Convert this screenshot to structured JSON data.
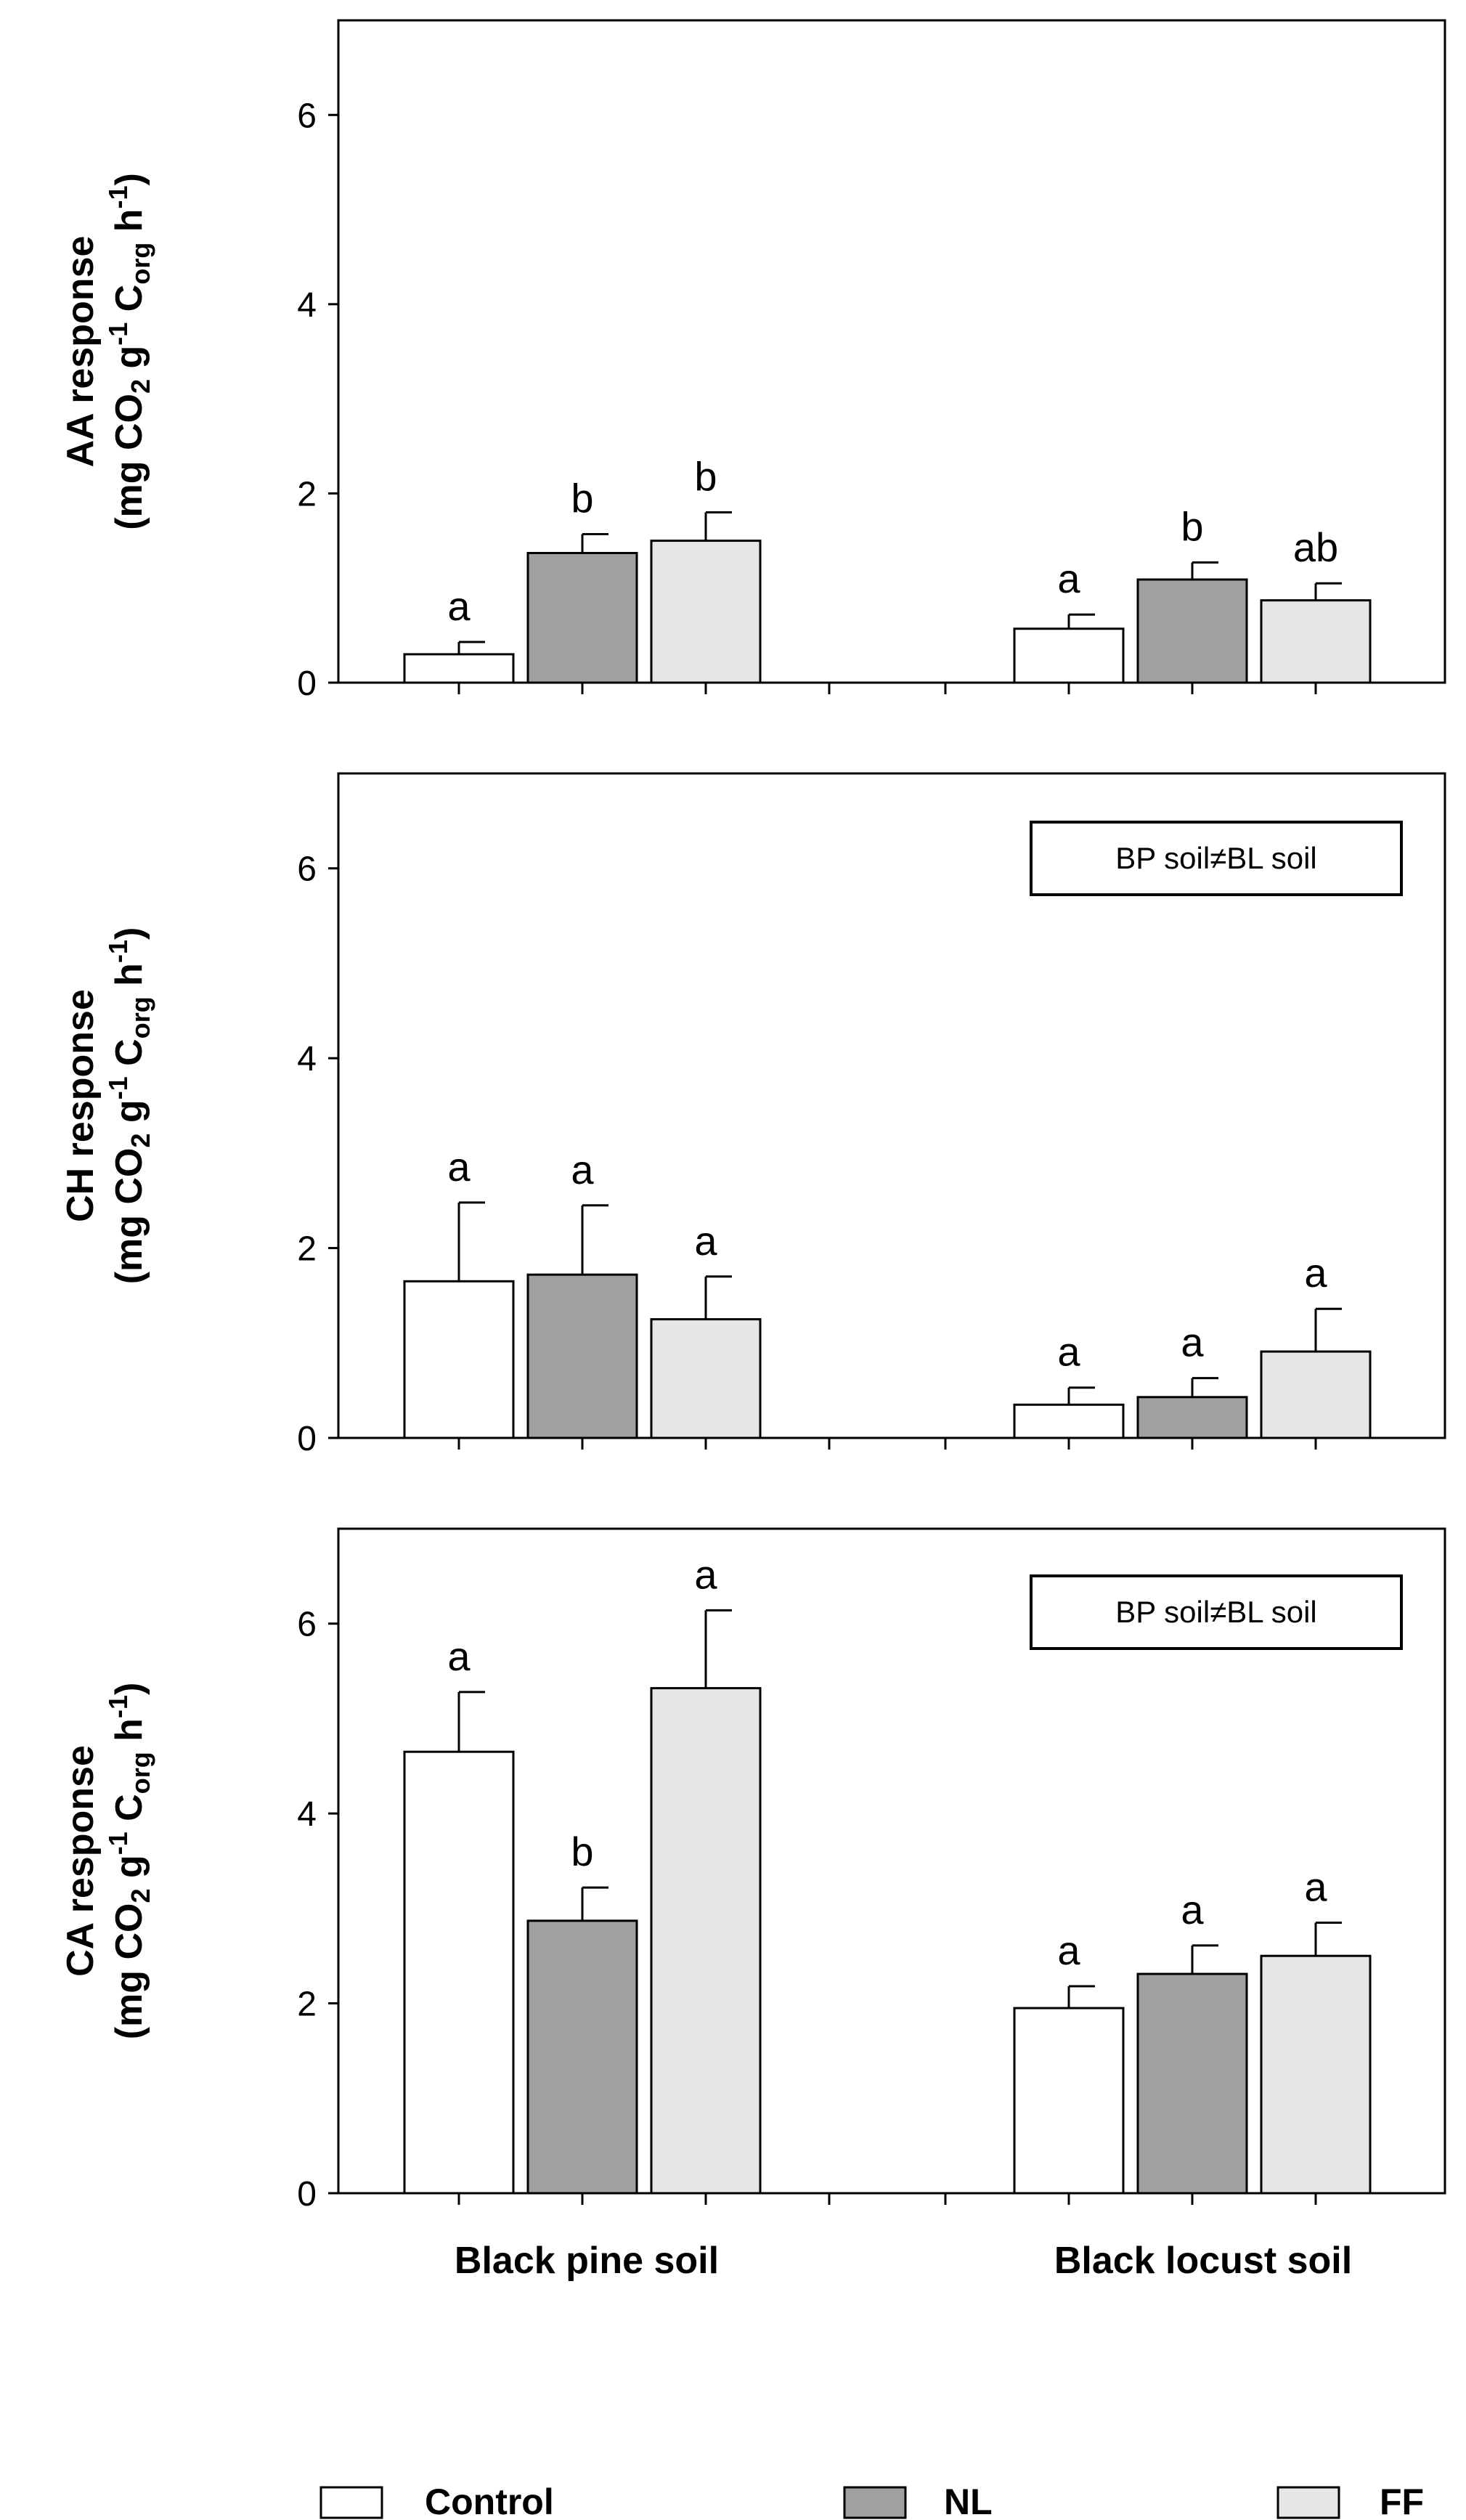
{
  "chart_data": {
    "type": "bar",
    "categories": [
      "Black pine soil",
      "Black locust soil"
    ],
    "legend": [
      "Control",
      "NL",
      "FF"
    ],
    "colors": {
      "Control": "#ffffff",
      "NL": "#a0a0a0",
      "FF": "#e6e6e6"
    },
    "ylim": [
      0,
      7
    ],
    "yticks": [
      "0",
      "2",
      "4",
      "6"
    ],
    "panels": [
      {
        "ylabel_line1": "AA response",
        "ylabel_parts": [
          "(mg CO",
          "2",
          " g",
          "-1",
          " C",
          "org",
          " h",
          "-1",
          ")"
        ],
        "note": "",
        "series": [
          {
            "name": "Control",
            "values": [
              0.3,
              0.57
            ],
            "errors": [
              0.13,
              0.15
            ],
            "letters": [
              "a",
              "a"
            ]
          },
          {
            "name": "NL",
            "values": [
              1.37,
              1.09
            ],
            "errors": [
              0.2,
              0.18
            ],
            "letters": [
              "b",
              "b"
            ]
          },
          {
            "name": "FF",
            "values": [
              1.5,
              0.87
            ],
            "errors": [
              0.3,
              0.18
            ],
            "letters": [
              "b",
              "ab"
            ]
          }
        ]
      },
      {
        "ylabel_line1": "CH response",
        "ylabel_parts": [
          "(mg CO",
          "2",
          " g",
          "-1",
          " C",
          "org",
          " h",
          "-1",
          ")"
        ],
        "note": "BP soil≠BL soil",
        "series": [
          {
            "name": "Control",
            "values": [
              1.65,
              0.35
            ],
            "errors": [
              0.83,
              0.18
            ],
            "letters": [
              "a",
              "a"
            ]
          },
          {
            "name": "NL",
            "values": [
              1.72,
              0.43
            ],
            "errors": [
              0.73,
              0.2
            ],
            "letters": [
              "a",
              "a"
            ]
          },
          {
            "name": "FF",
            "values": [
              1.25,
              0.91
            ],
            "errors": [
              0.45,
              0.45
            ],
            "letters": [
              "a",
              "a"
            ]
          }
        ]
      },
      {
        "ylabel_line1": "CA response",
        "ylabel_parts": [
          "(mg CO",
          "2",
          " g",
          "-1",
          " C",
          "org",
          " h",
          "-1",
          ")"
        ],
        "note": "BP soil≠BL soil",
        "series": [
          {
            "name": "Control",
            "values": [
              4.65,
              1.95
            ],
            "errors": [
              0.63,
              0.23
            ],
            "letters": [
              "a",
              "a"
            ]
          },
          {
            "name": "NL",
            "values": [
              2.87,
              2.31
            ],
            "errors": [
              0.35,
              0.3
            ],
            "letters": [
              "b",
              "a"
            ]
          },
          {
            "name": "FF",
            "values": [
              5.32,
              2.5
            ],
            "errors": [
              0.82,
              0.35
            ],
            "letters": [
              "a",
              "a"
            ]
          }
        ]
      }
    ]
  }
}
